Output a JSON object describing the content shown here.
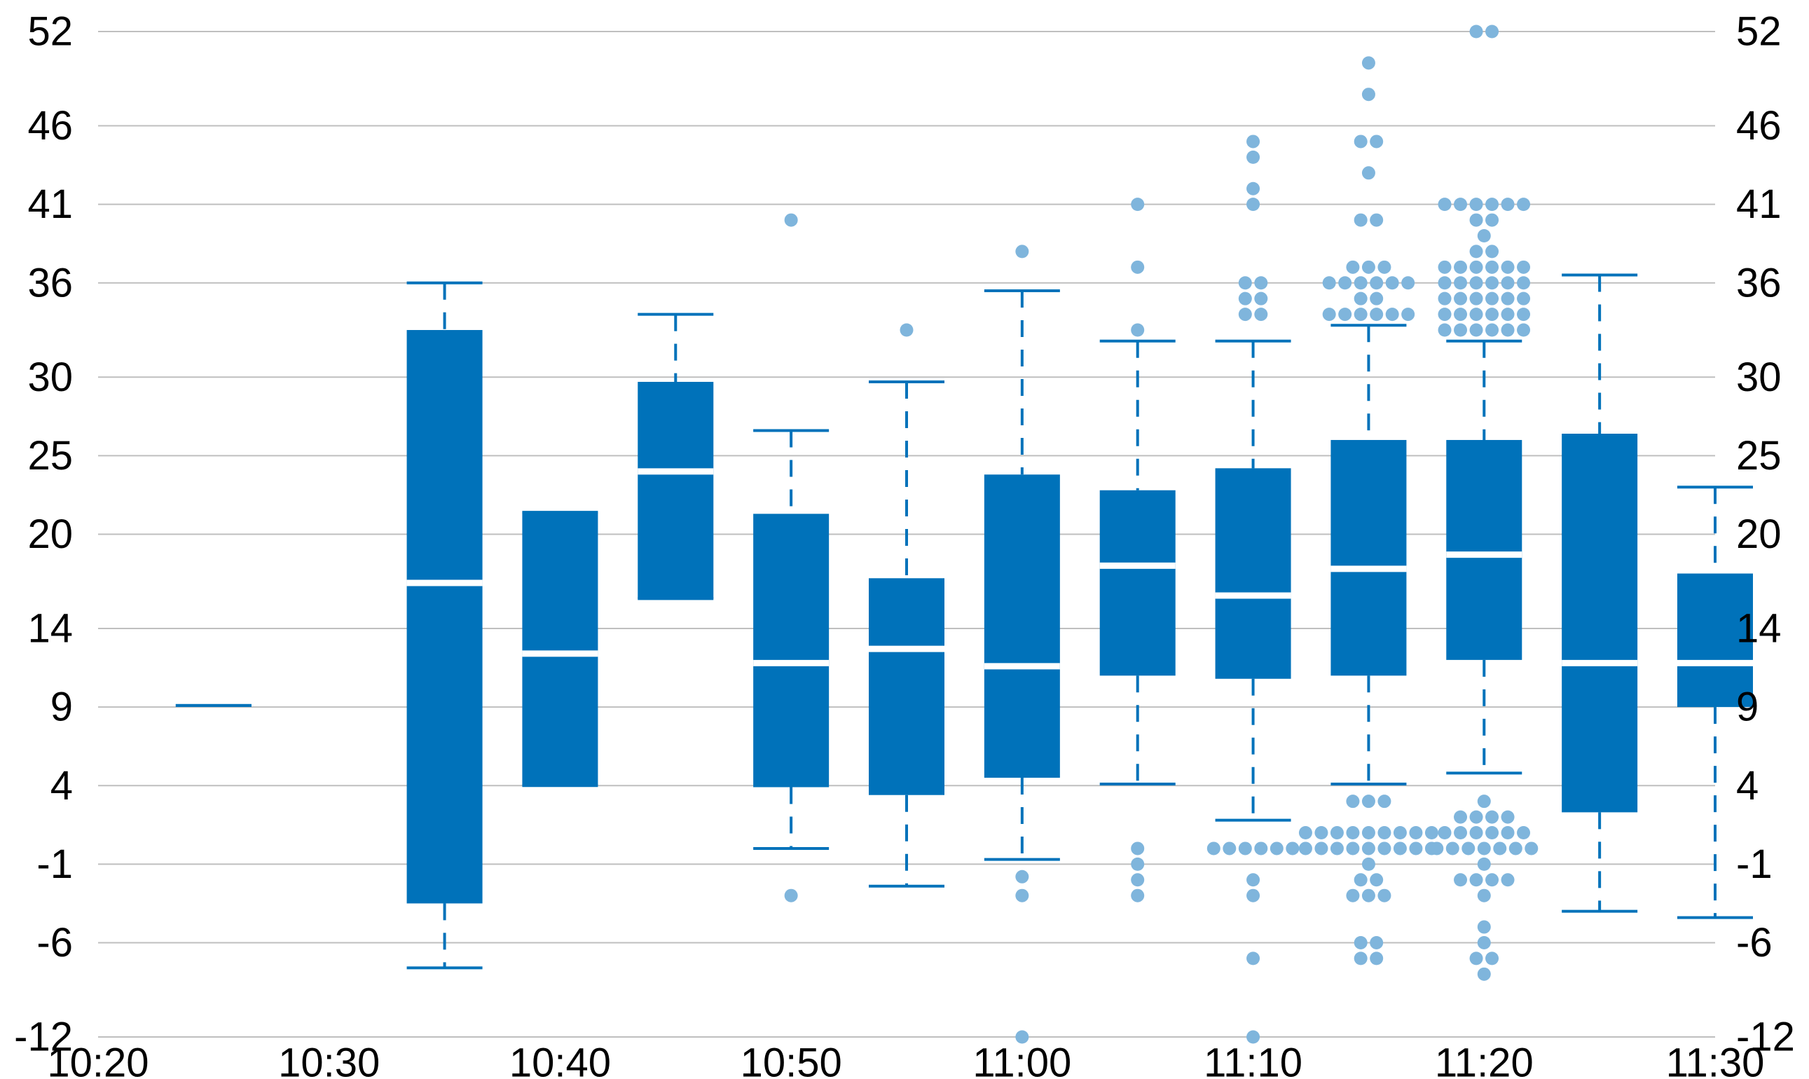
{
  "chart_data": {
    "type": "box",
    "title": "",
    "xlabel": "",
    "ylabel": "",
    "ylim": [
      -12,
      52
    ],
    "x_ticks": [
      "10:20",
      "10:30",
      "10:40",
      "10:50",
      "11:00",
      "11:10",
      "11:20",
      "11:30"
    ],
    "y_ticks": [
      "52",
      "46",
      "41",
      "36",
      "30",
      "25",
      "20",
      "14",
      "9",
      "4",
      "-1",
      "-6",
      "-12"
    ],
    "right_axis": true,
    "grid": "horizontal",
    "colors": {
      "box": "#0072BA",
      "outlier": "#7FB5DC",
      "grid": "#BFBFBF",
      "median": "#FFFFFF"
    },
    "boxes": [
      {
        "time": "10:25",
        "q1": 9.1,
        "median": 9.1,
        "q3": 9.1,
        "whisker_low": 9.1,
        "whisker_high": 9.1,
        "outliers": []
      },
      {
        "time": "10:35",
        "q1": -3.5,
        "median": 16.9,
        "q3": 33.0,
        "whisker_low": -7.6,
        "whisker_high": 36.0,
        "outliers": []
      },
      {
        "time": "10:40",
        "q1": 4.0,
        "median": 12.4,
        "q3": 21.4,
        "whisker_low": 4.0,
        "whisker_high": 21.4,
        "outliers": []
      },
      {
        "time": "10:45",
        "q1": 15.9,
        "median": 24.0,
        "q3": 29.7,
        "whisker_low": 15.9,
        "whisker_high": 34.0,
        "outliers": []
      },
      {
        "time": "10:50",
        "q1": 3.9,
        "median": 11.8,
        "q3": 21.3,
        "whisker_low": 0.0,
        "whisker_high": 26.6,
        "outliers": [
          -3.0,
          40.0
        ]
      },
      {
        "time": "10:55",
        "q1": 3.4,
        "median": 12.7,
        "q3": 17.2,
        "whisker_low": -2.4,
        "whisker_high": 29.7,
        "outliers": [
          33.0
        ]
      },
      {
        "time": "11:00",
        "q1": 4.5,
        "median": 11.6,
        "q3": 23.8,
        "whisker_low": -0.7,
        "whisker_high": 35.5,
        "outliers": [
          -12.0,
          -3.0,
          -1.8,
          38.0
        ]
      },
      {
        "time": "11:05",
        "q1": 11.0,
        "median": 18.0,
        "q3": 22.8,
        "whisker_low": 4.1,
        "whisker_high": 32.3,
        "outliers": [
          -3.0,
          -2.0,
          -1.0,
          0.0,
          33.0,
          37.0,
          41.0
        ]
      },
      {
        "time": "11:10",
        "q1": 10.8,
        "median": 16.1,
        "q3": 24.2,
        "whisker_low": 1.8,
        "whisker_high": 32.3,
        "outliers": [
          -12.0,
          -7.0,
          -3.0,
          -2.0,
          0.0,
          0.0,
          0.0,
          0.0,
          0.0,
          0.0,
          34.0,
          34.0,
          35.0,
          35.0,
          36.0,
          36.0,
          41.0,
          42.0,
          44.0,
          45.0
        ]
      },
      {
        "time": "11:15",
        "q1": 11.0,
        "median": 17.8,
        "q3": 26.0,
        "whisker_low": 4.1,
        "whisker_high": 33.3,
        "outliers": [
          -7.0,
          -7.0,
          -6.0,
          -6.0,
          -3.0,
          -3.0,
          -3.0,
          -2.0,
          -2.0,
          -1.0,
          0.0,
          0.0,
          0.0,
          0.0,
          0.0,
          0.0,
          0.0,
          0.0,
          0.0,
          1.0,
          1.0,
          1.0,
          1.0,
          1.0,
          1.0,
          1.0,
          1.0,
          1.0,
          3.0,
          3.0,
          3.0,
          34.0,
          34.0,
          34.0,
          34.0,
          34.0,
          34.0,
          35.0,
          35.0,
          36.0,
          36.0,
          36.0,
          36.0,
          36.0,
          36.0,
          37.0,
          37.0,
          37.0,
          40.0,
          40.0,
          43.0,
          45.0,
          45.0,
          48.0,
          50.0
        ]
      },
      {
        "time": "11:20",
        "q1": 12.0,
        "median": 18.7,
        "q3": 26.0,
        "whisker_low": 4.8,
        "whisker_high": 32.3,
        "outliers": [
          -8.0,
          -7.0,
          -7.0,
          -6.0,
          -5.0,
          -3.0,
          -2.0,
          -2.0,
          -2.0,
          -2.0,
          -1.0,
          0.0,
          0.0,
          0.0,
          0.0,
          0.0,
          0.0,
          0.0,
          1.0,
          1.0,
          1.0,
          1.0,
          1.0,
          1.0,
          2.0,
          2.0,
          2.0,
          2.0,
          3.0,
          33.0,
          33.0,
          33.0,
          33.0,
          33.0,
          33.0,
          34.0,
          34.0,
          34.0,
          34.0,
          34.0,
          34.0,
          35.0,
          35.0,
          35.0,
          35.0,
          35.0,
          35.0,
          36.0,
          36.0,
          36.0,
          36.0,
          36.0,
          36.0,
          37.0,
          37.0,
          37.0,
          37.0,
          37.0,
          37.0,
          38.0,
          38.0,
          39.0,
          40.0,
          40.0,
          41.0,
          41.0,
          41.0,
          41.0,
          41.0,
          41.0,
          52.0,
          52.0
        ]
      },
      {
        "time": "11:25",
        "q1": 2.3,
        "median": 11.8,
        "q3": 26.4,
        "whisker_low": -4.0,
        "whisker_high": 36.5,
        "outliers": []
      },
      {
        "time": "11:30",
        "q1": 9.0,
        "median": 11.8,
        "q3": 17.5,
        "whisker_low": -4.4,
        "whisker_high": 23.0,
        "outliers": []
      }
    ]
  }
}
